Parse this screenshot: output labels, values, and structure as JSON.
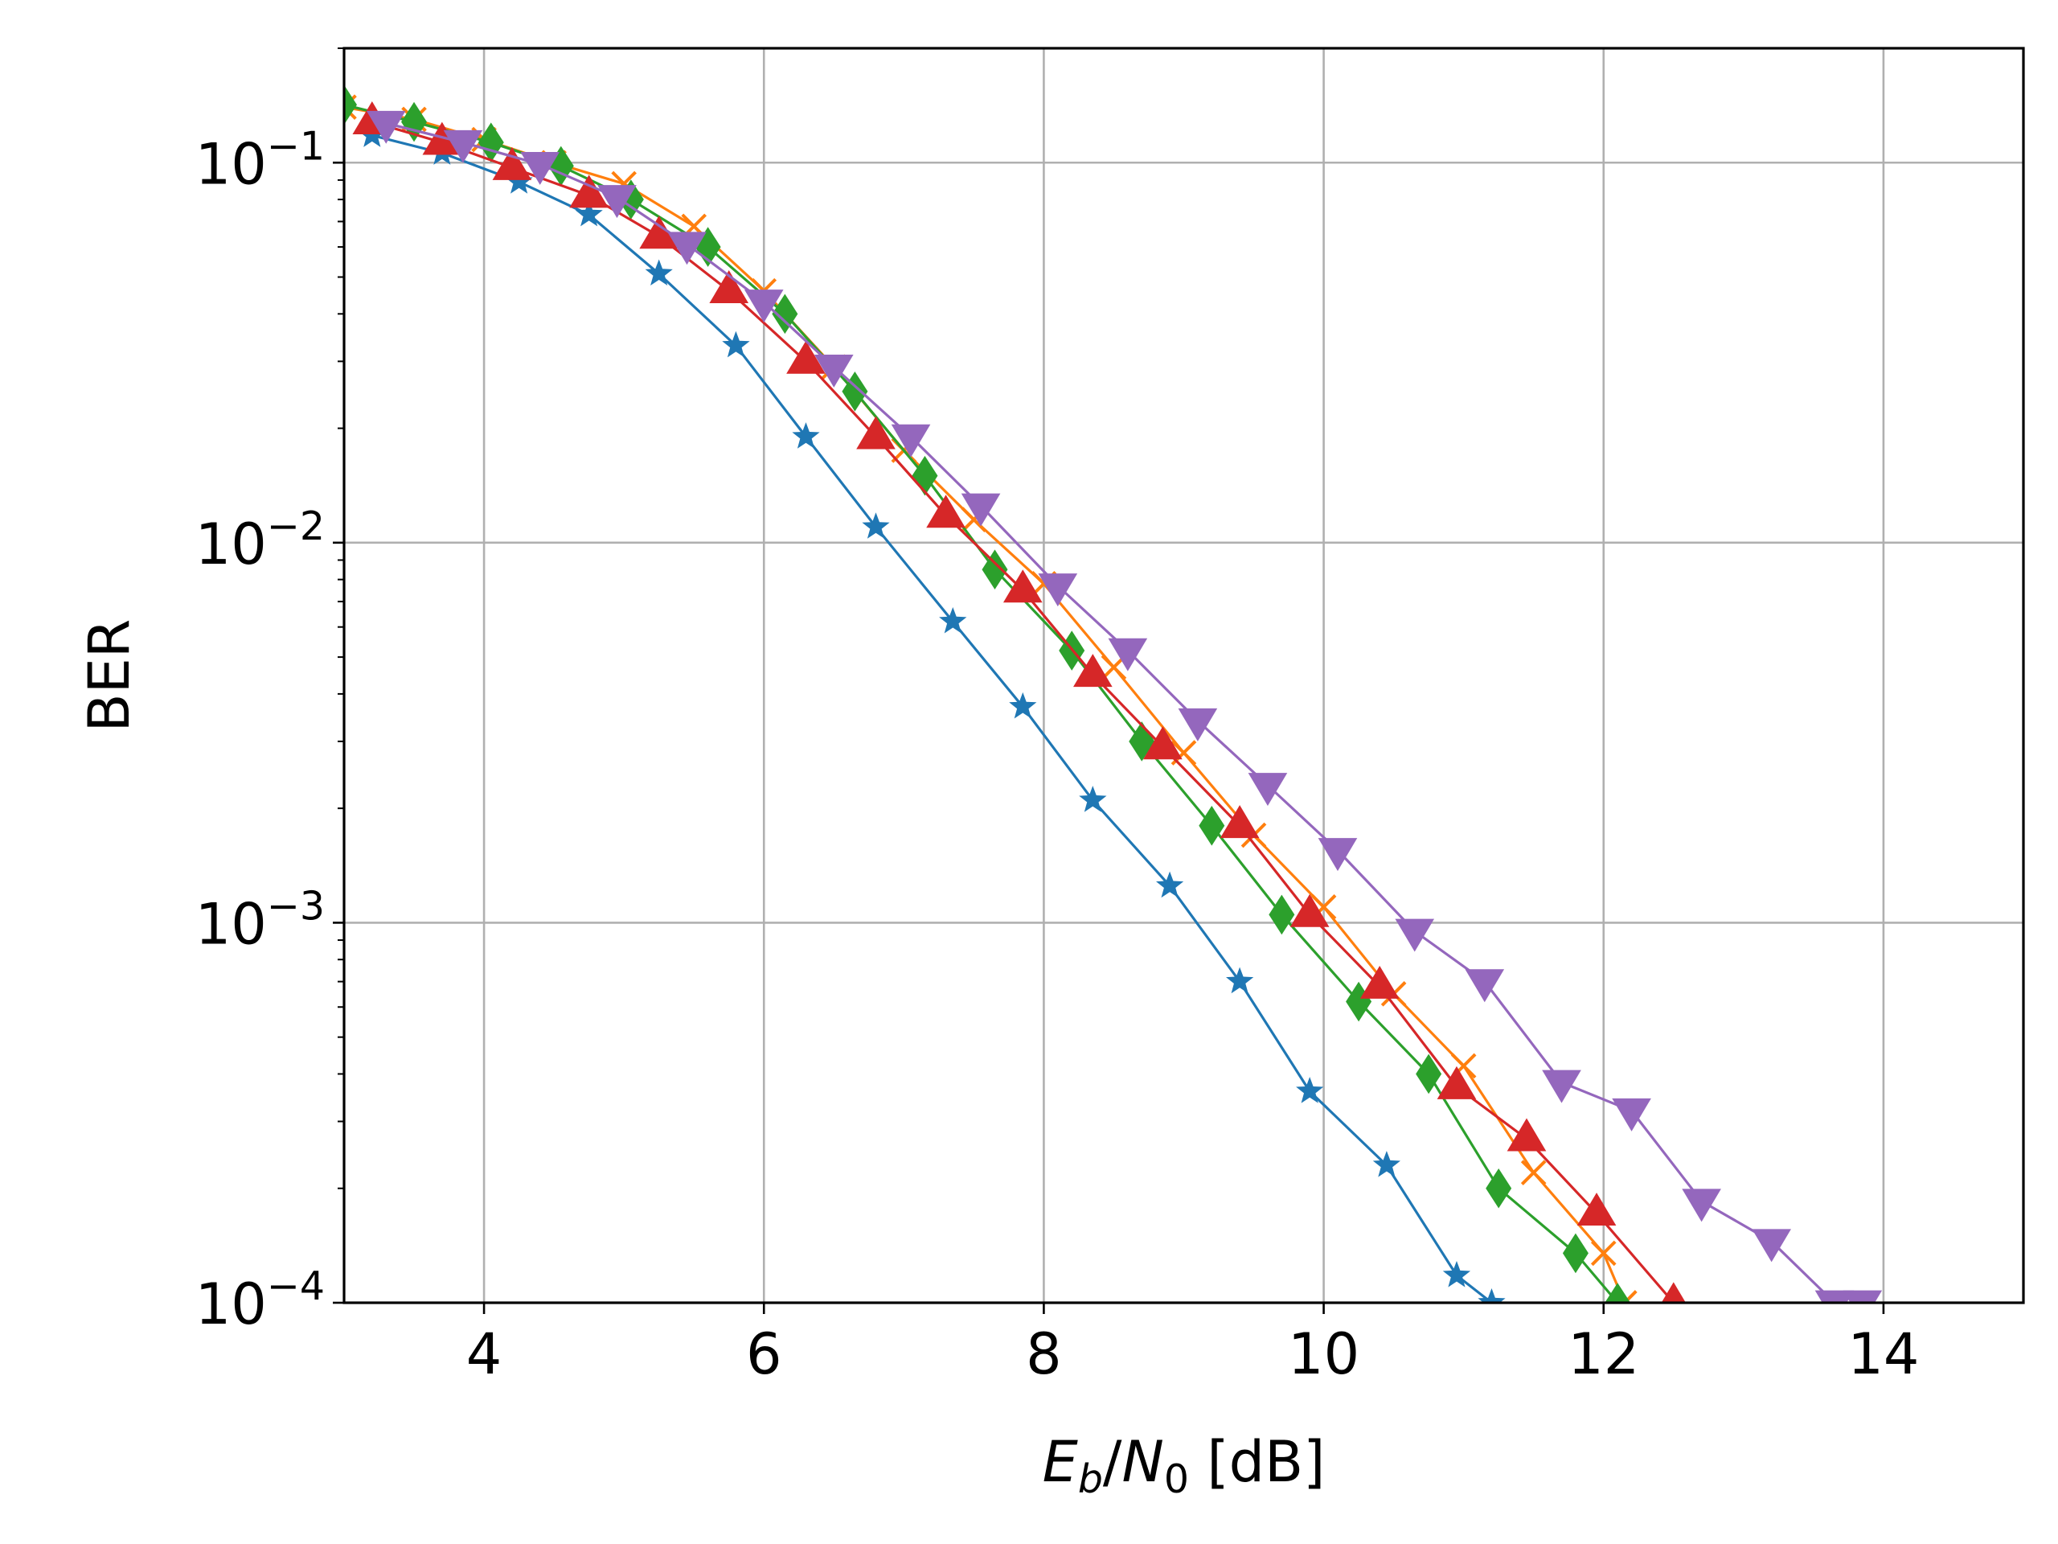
{
  "chart_data": {
    "type": "line",
    "title": "",
    "xlabel": {
      "italic_1": "E",
      "sub_1": "b",
      "slash": "/",
      "italic_2": "N",
      "sub_2": "0",
      "unit": " [dB]"
    },
    "ylabel": "BER",
    "xlim": [
      3,
      15
    ],
    "ylim": [
      0.0001,
      0.2
    ],
    "yscale": "log",
    "grid": true,
    "legend": "none",
    "x_ticks": [
      {
        "value": 4,
        "label": "4"
      },
      {
        "value": 6,
        "label": "6"
      },
      {
        "value": 8,
        "label": "8"
      },
      {
        "value": 10,
        "label": "10"
      },
      {
        "value": 12,
        "label": "12"
      },
      {
        "value": 14,
        "label": "14"
      }
    ],
    "y_ticks": [
      {
        "value": 0.1,
        "base": "10",
        "exp": "−1"
      },
      {
        "value": 0.01,
        "base": "10",
        "exp": "−2"
      },
      {
        "value": 0.001,
        "base": "10",
        "exp": "−3"
      },
      {
        "value": 0.0001,
        "base": "10",
        "exp": "−4"
      }
    ],
    "series": [
      {
        "color": "#1f77b4",
        "marker": "star",
        "x": [
          3.2,
          3.7,
          4.25,
          4.75,
          5.25,
          5.8,
          6.3,
          6.8,
          7.35,
          7.85,
          8.35,
          8.9,
          9.4,
          9.9,
          10.45,
          10.95,
          11.2
        ],
        "y": [
          0.118,
          0.106,
          0.089,
          0.073,
          0.051,
          0.033,
          0.019,
          0.011,
          0.0062,
          0.0037,
          0.0021,
          0.00125,
          0.0007,
          0.00036,
          0.00023,
          0.000118,
          0.0001
        ]
      },
      {
        "color": "#ff7f0e",
        "marker": "x",
        "x": [
          3.0,
          3.5,
          4.0,
          4.5,
          5.0,
          5.5,
          6.0,
          6.5,
          7.0,
          7.5,
          8.0,
          8.5,
          9.0,
          9.5,
          10.0,
          10.5,
          11.0,
          11.5,
          12.0,
          12.15
        ],
        "y": [
          0.14,
          0.13,
          0.115,
          0.1,
          0.088,
          0.068,
          0.046,
          0.029,
          0.0175,
          0.0115,
          0.0078,
          0.0047,
          0.0028,
          0.0017,
          0.0011,
          0.00065,
          0.00042,
          0.00022,
          0.000135,
          0.0001
        ]
      },
      {
        "color": "#2ca02c",
        "marker": "diamond",
        "x": [
          3.0,
          3.5,
          4.05,
          4.55,
          5.05,
          5.6,
          6.15,
          6.65,
          7.15,
          7.65,
          8.2,
          8.7,
          9.2,
          9.7,
          10.25,
          10.75,
          11.25,
          11.8,
          12.1
        ],
        "y": [
          0.142,
          0.128,
          0.113,
          0.098,
          0.08,
          0.06,
          0.04,
          0.025,
          0.015,
          0.0085,
          0.0052,
          0.003,
          0.0018,
          0.00105,
          0.00062,
          0.0004,
          0.0002,
          0.000135,
          0.0001
        ]
      },
      {
        "color": "#d62728",
        "marker": "triangle-up",
        "x": [
          3.2,
          3.7,
          4.2,
          4.75,
          5.25,
          5.75,
          6.3,
          6.8,
          7.3,
          7.85,
          8.35,
          8.85,
          9.4,
          9.9,
          10.4,
          10.95,
          11.45,
          11.95,
          12.5
        ],
        "y": [
          0.128,
          0.113,
          0.097,
          0.082,
          0.064,
          0.046,
          0.03,
          0.019,
          0.0118,
          0.0075,
          0.0045,
          0.0029,
          0.0018,
          0.00105,
          0.00068,
          0.00037,
          0.00027,
          0.000172,
          0.0001
        ]
      },
      {
        "color": "#9467bd",
        "marker": "triangle-down",
        "x": [
          3.3,
          3.85,
          4.4,
          4.95,
          5.45,
          6.0,
          6.5,
          7.05,
          7.55,
          8.1,
          8.6,
          9.1,
          9.6,
          10.1,
          10.65,
          11.15,
          11.7,
          12.2,
          12.7,
          13.2,
          13.65,
          13.85
        ],
        "y": [
          0.127,
          0.113,
          0.099,
          0.081,
          0.061,
          0.043,
          0.029,
          0.019,
          0.0125,
          0.0077,
          0.0052,
          0.0034,
          0.0023,
          0.00155,
          0.00095,
          0.0007,
          0.00038,
          0.00032,
          0.000185,
          0.000145,
          0.0001,
          0.0001
        ]
      }
    ]
  }
}
